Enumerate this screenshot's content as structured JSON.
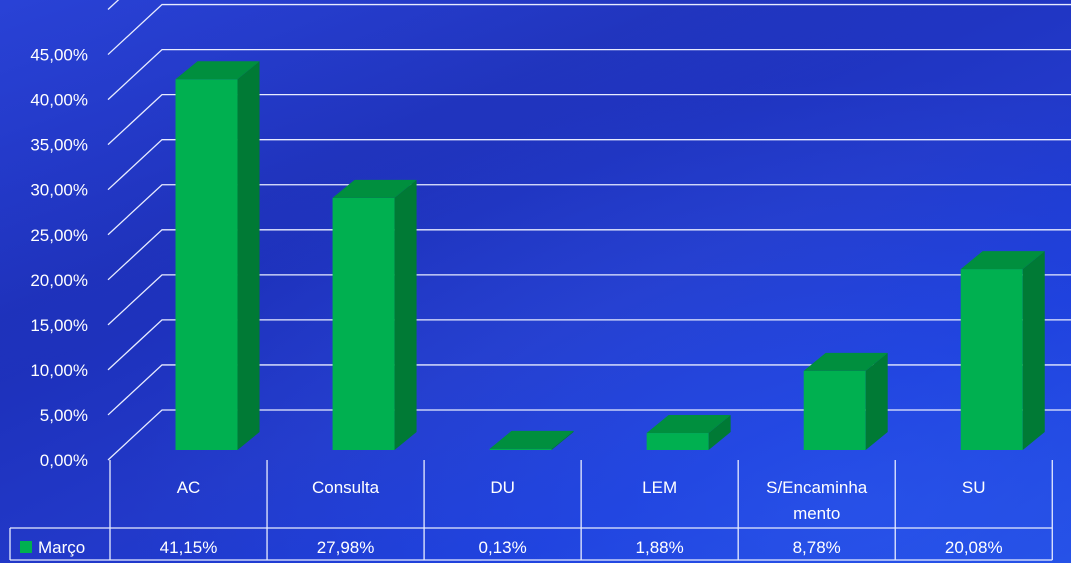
{
  "chart_data": {
    "type": "bar",
    "categories": [
      "AC",
      "Consulta",
      "DU",
      "LEM",
      "S/Encaminhamento",
      "SU"
    ],
    "category_lines": [
      [
        "AC"
      ],
      [
        "Consulta"
      ],
      [
        "DU"
      ],
      [
        "LEM"
      ],
      [
        "S/Encaminha",
        "mento"
      ],
      [
        "SU"
      ]
    ],
    "series": [
      {
        "name": "Março",
        "values": [
          41.15,
          27.98,
          0.13,
          1.88,
          8.78,
          20.08
        ],
        "labels": [
          "41,15%",
          "27,98%",
          "0,13%",
          "1,88%",
          "8,78%",
          "20,08%"
        ],
        "color": "#00b050",
        "side_color": "#007a35",
        "top_color": "#008f3e"
      }
    ],
    "ylim": [
      0,
      50
    ],
    "yticks": [
      0,
      5,
      10,
      15,
      20,
      25,
      30,
      35,
      40,
      45
    ],
    "ytick_labels": [
      "0,00%",
      "5,00%",
      "10,00%",
      "15,00%",
      "20,00%",
      "25,00%",
      "30,00%",
      "35,00%",
      "40,00%",
      "45,00%"
    ],
    "grid": true,
    "legend_position": "data-table",
    "colors": {
      "background": "#1c30c0",
      "grid": "#e8ecff",
      "text": "#ffffff"
    }
  }
}
